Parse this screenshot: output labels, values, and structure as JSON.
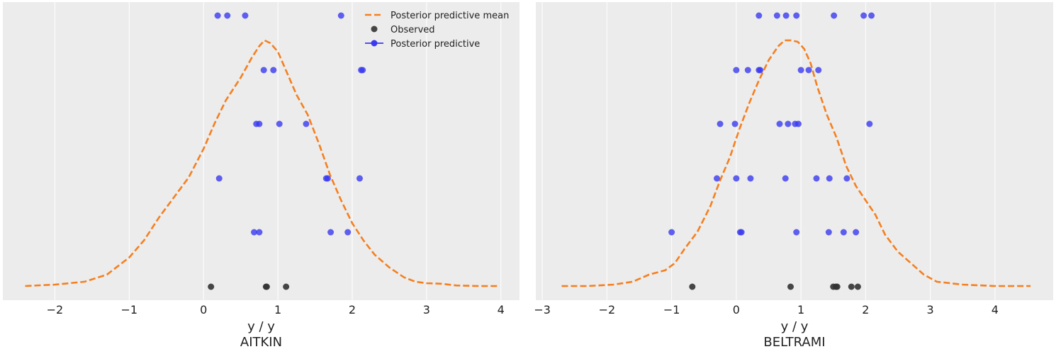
{
  "colors": {
    "background": "#ececec",
    "grid": "#ffffff",
    "mean_line": "#f57f1f",
    "observed": "#333333",
    "predictive": "#3a3af0"
  },
  "legend": {
    "placement": "top-right (left panel)",
    "items": [
      {
        "label": "Posterior predictive mean",
        "kind": "dashed-line",
        "color": "#f57f1f"
      },
      {
        "label": "Observed",
        "kind": "marker",
        "color": "#333333"
      },
      {
        "label": "Posterior predictive",
        "kind": "line-marker",
        "color": "#3a3af0"
      }
    ]
  },
  "chart_data": [
    {
      "type": "line",
      "xlabel": "y / y",
      "title": "AITKIN",
      "xlim": [
        -2.7,
        4.25
      ],
      "xticks": [
        -2,
        -1,
        0,
        1,
        2,
        3,
        4
      ],
      "xtick_labels": [
        "−2",
        "−1",
        "0",
        "1",
        "2",
        "3",
        "4"
      ],
      "grid": true,
      "series": [
        {
          "name": "Posterior predictive mean",
          "style": "dashed",
          "x": [
            -2.4,
            -2.0,
            -1.6,
            -1.3,
            -1.0,
            -0.8,
            -0.6,
            -0.4,
            -0.2,
            0.0,
            0.15,
            0.3,
            0.5,
            0.65,
            0.75,
            0.82,
            0.9,
            1.0,
            1.1,
            1.25,
            1.4,
            1.55,
            1.7,
            1.85,
            2.0,
            2.15,
            2.3,
            2.5,
            2.7,
            2.85,
            3.0,
            3.2,
            3.4,
            3.7,
            3.95
          ],
          "y": [
            0.0,
            0.005,
            0.015,
            0.04,
            0.1,
            0.16,
            0.24,
            0.31,
            0.38,
            0.48,
            0.57,
            0.65,
            0.73,
            0.8,
            0.84,
            0.86,
            0.85,
            0.82,
            0.76,
            0.67,
            0.6,
            0.5,
            0.39,
            0.3,
            0.22,
            0.16,
            0.11,
            0.065,
            0.03,
            0.015,
            0.01,
            0.008,
            0.002,
            0.0,
            0.0
          ]
        },
        {
          "name": "Observed",
          "style": "markers",
          "x": [
            0.1,
            0.84,
            0.85,
            1.11
          ],
          "row": 0
        }
      ],
      "predictive_rows": [
        {
          "row": 1,
          "x": [
            0.68,
            0.75,
            1.71,
            1.94
          ]
        },
        {
          "row": 2,
          "x": [
            0.21,
            1.65,
            1.67,
            2.1
          ]
        },
        {
          "row": 3,
          "x": [
            0.71,
            0.75,
            1.02,
            1.38
          ]
        },
        {
          "row": 4,
          "x": [
            0.81,
            0.94,
            2.12,
            2.14
          ]
        },
        {
          "row": 5,
          "x": [
            0.19,
            0.32,
            0.56,
            1.85
          ]
        }
      ]
    },
    {
      "type": "line",
      "xlabel": "y / y",
      "title": "BELTRAMI",
      "xlim": [
        -3.1,
        4.9
      ],
      "xticks": [
        -3,
        -2,
        -1,
        0,
        1,
        2,
        3,
        4
      ],
      "xtick_labels": [
        "−3",
        "−2",
        "−1",
        "0",
        "1",
        "2",
        "3",
        "4"
      ],
      "grid": true,
      "series": [
        {
          "name": "Posterior predictive mean",
          "style": "dashed",
          "x": [
            -2.7,
            -2.3,
            -1.9,
            -1.6,
            -1.35,
            -1.1,
            -0.95,
            -0.8,
            -0.6,
            -0.4,
            -0.25,
            -0.1,
            0.05,
            0.2,
            0.35,
            0.5,
            0.65,
            0.75,
            0.85,
            0.95,
            1.05,
            1.15,
            1.25,
            1.4,
            1.55,
            1.7,
            1.85,
            2.0,
            2.15,
            2.3,
            2.5,
            2.7,
            2.9,
            3.1,
            3.5,
            4.0,
            4.55
          ],
          "y": [
            0.0,
            0.0,
            0.005,
            0.015,
            0.04,
            0.055,
            0.08,
            0.13,
            0.19,
            0.28,
            0.37,
            0.45,
            0.55,
            0.64,
            0.72,
            0.79,
            0.84,
            0.86,
            0.86,
            0.855,
            0.83,
            0.78,
            0.7,
            0.6,
            0.52,
            0.42,
            0.35,
            0.3,
            0.25,
            0.18,
            0.12,
            0.08,
            0.04,
            0.015,
            0.005,
            0.0,
            0.0
          ]
        },
        {
          "name": "Observed",
          "style": "markers",
          "x": [
            -0.68,
            0.84,
            1.5,
            1.54,
            1.56,
            1.78,
            1.88
          ],
          "row": 0
        }
      ],
      "predictive_rows": [
        {
          "row": 1,
          "x": [
            -1.0,
            0.06,
            0.08,
            0.93,
            1.43,
            1.66,
            1.85
          ]
        },
        {
          "row": 2,
          "x": [
            -0.3,
            0.0,
            0.22,
            0.76,
            1.24,
            1.44,
            1.71
          ]
        },
        {
          "row": 3,
          "x": [
            -0.25,
            -0.02,
            0.67,
            0.8,
            0.91,
            0.96,
            2.06
          ]
        },
        {
          "row": 4,
          "x": [
            0.0,
            0.18,
            0.35,
            0.37,
            1.0,
            1.12,
            1.27
          ]
        },
        {
          "row": 5,
          "x": [
            0.35,
            0.63,
            0.77,
            0.93,
            1.51,
            1.97,
            2.09
          ]
        }
      ]
    }
  ]
}
